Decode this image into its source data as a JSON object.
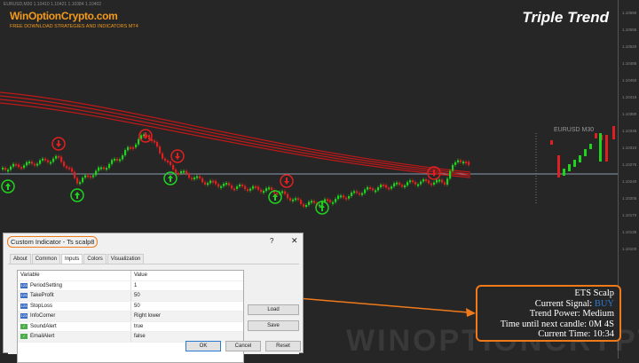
{
  "chart": {
    "symbol_bar": "EURUSD,M30  1.10410 1.10421 1.10384 1.10402",
    "symbol_label": "EURUSD M30",
    "price_labels": [
      "1.10590",
      "1.10555",
      "1.10520",
      "1.10485",
      "1.10450",
      "1.10415",
      "1.10380",
      "1.10345",
      "1.10310",
      "1.10275",
      "1.10240",
      "1.10205",
      "1.10170",
      "1.10135",
      "1.10100"
    ],
    "bull_color": "#1fd31f",
    "bear_color": "#e02020",
    "ribbon_color": "#c01818",
    "signal_up_icon": "arrow-up-circle",
    "signal_down_icon": "arrow-down-circle"
  },
  "branding": {
    "logo": "WinOptionCrypto.com",
    "tagline": "FREE DOWNLOAD STRATEGIES AND INDICATORS MT4",
    "title": "Triple Trend",
    "watermark": "WINOPTIONCRYPTO.COM"
  },
  "dialog": {
    "title": "Custom Indicator - Ts scalp8",
    "help": "?",
    "close": "✕",
    "tabs": [
      "About",
      "Common",
      "Inputs",
      "Colors",
      "Visualization"
    ],
    "active_tab": "Inputs",
    "columns": [
      "Variable",
      "Value"
    ],
    "rows": [
      {
        "type": "num",
        "icon": "123",
        "name": "PeriodSetting",
        "value": "1"
      },
      {
        "type": "num",
        "icon": "123",
        "name": "TakeProfit",
        "value": "50"
      },
      {
        "type": "num",
        "icon": "123",
        "name": "StopLoss",
        "value": "50"
      },
      {
        "type": "num",
        "icon": "123",
        "name": "InfoCorner",
        "value": "Right lower"
      },
      {
        "type": "bool",
        "icon": "✓",
        "name": "SoundAlert",
        "value": "true"
      },
      {
        "type": "bool",
        "icon": "✓",
        "name": "EmailAlert",
        "value": "false"
      }
    ],
    "buttons": {
      "load": "Load",
      "save": "Save",
      "ok": "OK",
      "cancel": "Cancel",
      "reset": "Reset"
    }
  },
  "info_panel": {
    "name": "ETS Scalp",
    "signal_label": "Current Signal: ",
    "signal_value": "BUY",
    "signal_color": "#2a7ad2",
    "trend": "Trend Power: Medium",
    "next_candle": "Time until next candle: 0M 4S",
    "time": "Current Time: 10:34"
  },
  "accent": "#f07a1a"
}
